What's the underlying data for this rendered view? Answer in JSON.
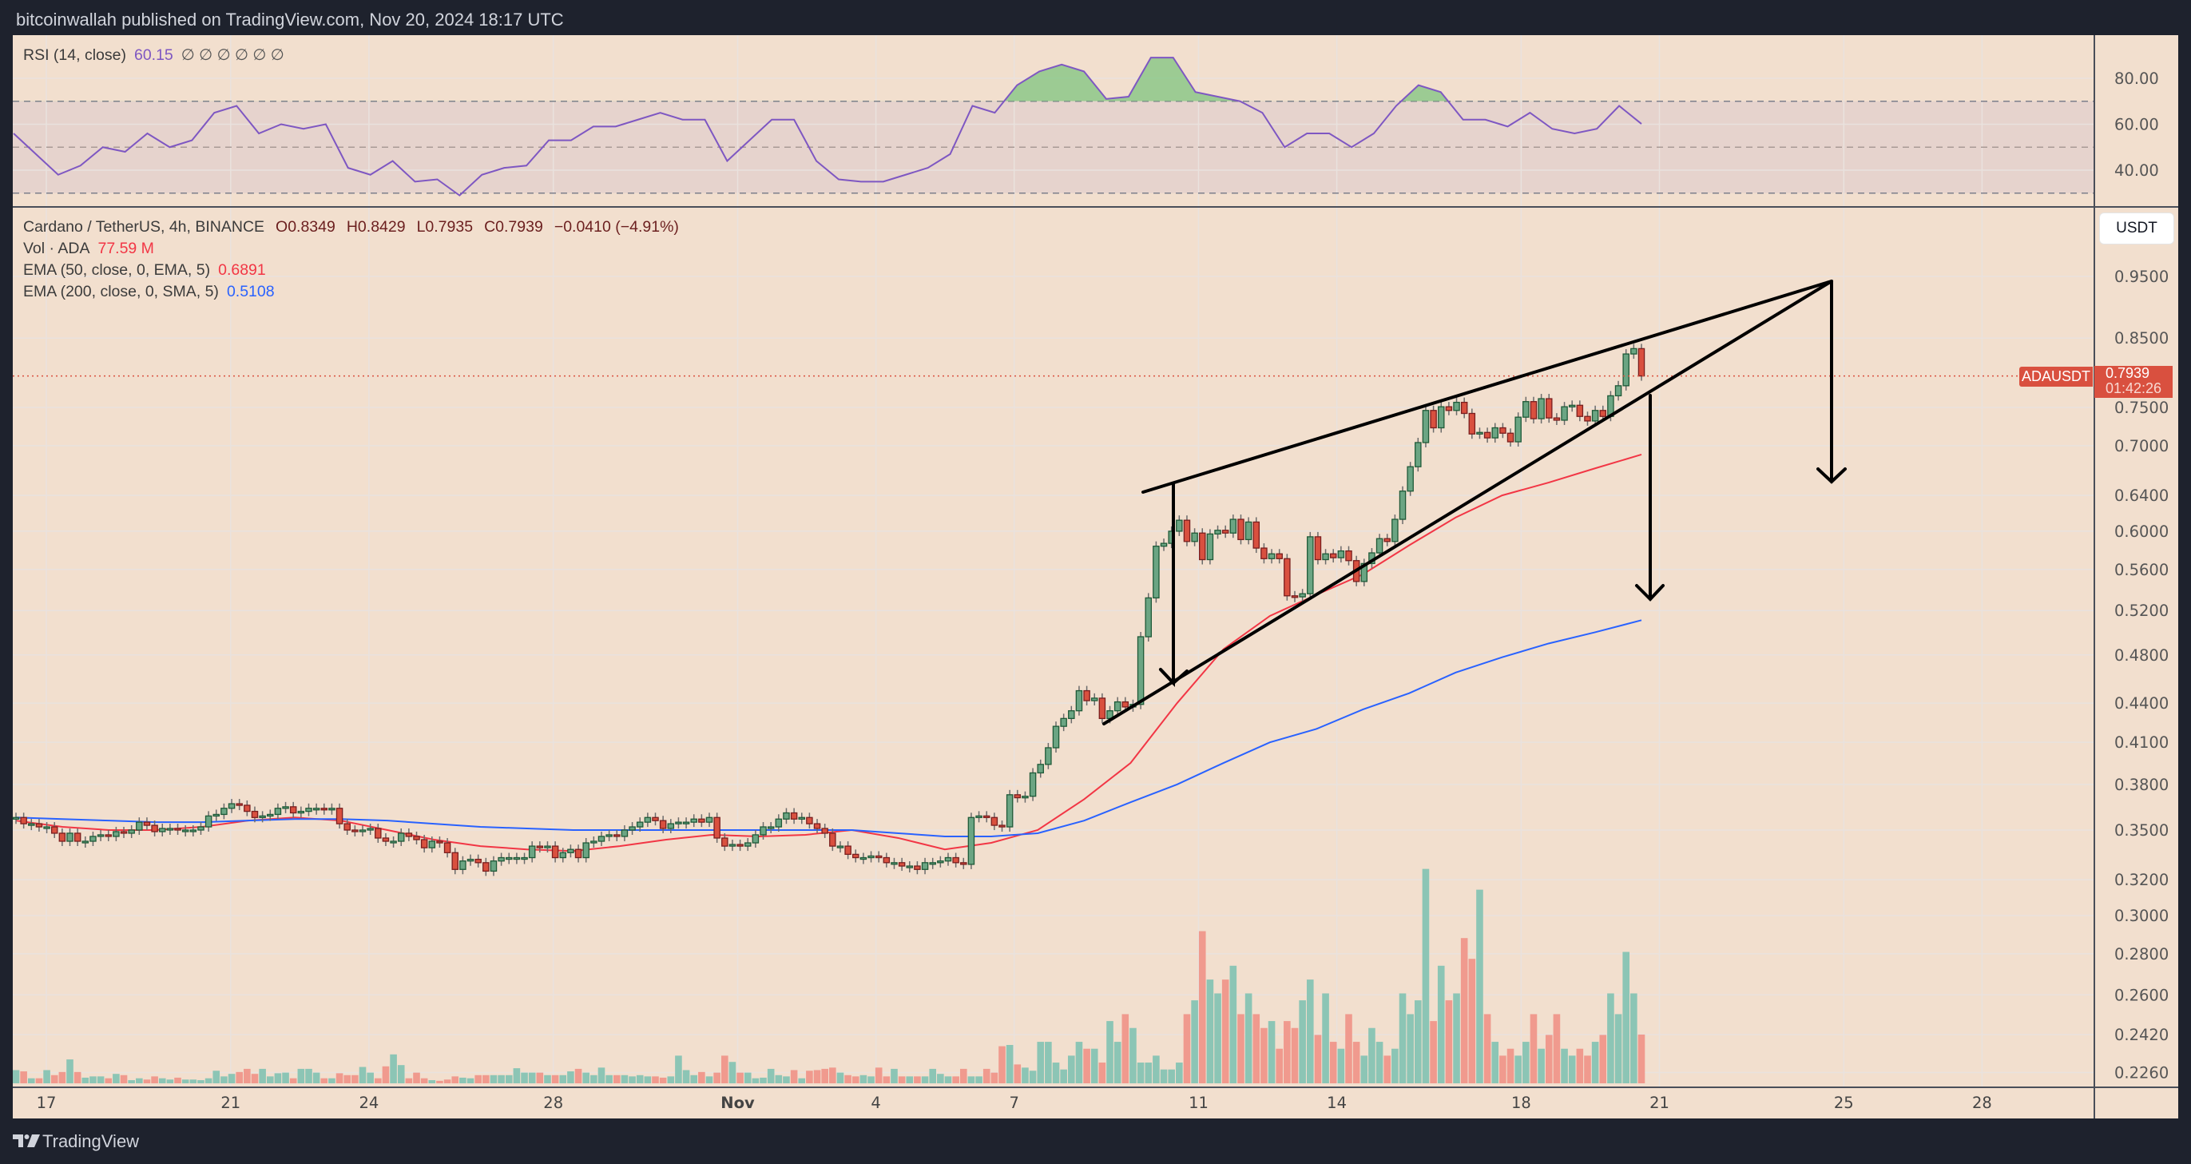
{
  "header": {
    "publisher_line": "bitcoinwallah published on TradingView.com, Nov 20, 2024 18:17 UTC"
  },
  "rsi_legend": {
    "label": "RSI (14, close)",
    "value": "60.15",
    "empty_values": "∅ ∅ ∅ ∅ ∅ ∅"
  },
  "legend": {
    "symbol": "Cardano / TetherUS, 4h, BINANCE",
    "open": "O0.8349",
    "high": "H0.8429",
    "low": "L0.7935",
    "close": "C0.7939",
    "change": "−0.0410 (−4.91%)",
    "vol_label": "Vol · ADA",
    "vol_value": "77.59 M",
    "ema50_label": "EMA (50, close, 0, EMA, 5)",
    "ema50_value": "0.6891",
    "ema200_label": "EMA (200, close, 0, SMA, 5)",
    "ema200_value": "0.5108"
  },
  "price_axis": {
    "currency": "USDT",
    "symbol_tag": "ADAUSDT",
    "last_price": "0.7939",
    "countdown": "01:42:26"
  },
  "footer": {
    "brand": "TradingView"
  },
  "colors": {
    "background": "#f2dfce",
    "frame": "#1e222d",
    "up": "#6ba583",
    "down": "#d9503f",
    "volume_up": "#8cc5b5",
    "volume_down": "#f09a8e",
    "ema50": "#f23645",
    "ema200": "#2962ff",
    "rsi": "#7e57c2",
    "rsi_overbought_fill": "#7fc47f",
    "last_price": "#d9503f",
    "drawing": "#000000"
  },
  "chart_data": {
    "type": "candlestick",
    "scale": "log",
    "interval": "4h",
    "closes": [
      0.358,
      0.354,
      0.354,
      0.352,
      0.352,
      0.348,
      0.343,
      0.348,
      0.343,
      0.343,
      0.346,
      0.347,
      0.346,
      0.349,
      0.348,
      0.35,
      0.355,
      0.353,
      0.349,
      0.351,
      0.351,
      0.35,
      0.35,
      0.35,
      0.352,
      0.359,
      0.36,
      0.364,
      0.367,
      0.366,
      0.362,
      0.358,
      0.359,
      0.36,
      0.364,
      0.365,
      0.361,
      0.362,
      0.364,
      0.364,
      0.363,
      0.364,
      0.354,
      0.35,
      0.349,
      0.35,
      0.351,
      0.345,
      0.343,
      0.343,
      0.348,
      0.346,
      0.344,
      0.339,
      0.343,
      0.342,
      0.336,
      0.326,
      0.331,
      0.332,
      0.33,
      0.325,
      0.331,
      0.333,
      0.333,
      0.333,
      0.333,
      0.34,
      0.339,
      0.34,
      0.333,
      0.336,
      0.338,
      0.333,
      0.342,
      0.343,
      0.346,
      0.347,
      0.346,
      0.35,
      0.352,
      0.355,
      0.358,
      0.356,
      0.351,
      0.354,
      0.355,
      0.355,
      0.357,
      0.355,
      0.358,
      0.345,
      0.34,
      0.341,
      0.34,
      0.342,
      0.347,
      0.352,
      0.352,
      0.357,
      0.361,
      0.357,
      0.358,
      0.354,
      0.351,
      0.348,
      0.34,
      0.34,
      0.335,
      0.333,
      0.333,
      0.334,
      0.333,
      0.33,
      0.33,
      0.328,
      0.328,
      0.326,
      0.33,
      0.33,
      0.331,
      0.333,
      0.33,
      0.329,
      0.358,
      0.359,
      0.358,
      0.353,
      0.352,
      0.373,
      0.371,
      0.372,
      0.388,
      0.394,
      0.406,
      0.422,
      0.428,
      0.434,
      0.45,
      0.442,
      0.444,
      0.428,
      0.434,
      0.441,
      0.437,
      0.439,
      0.496,
      0.532,
      0.584,
      0.587,
      0.6,
      0.612,
      0.589,
      0.598,
      0.57,
      0.597,
      0.601,
      0.598,
      0.613,
      0.591,
      0.61,
      0.582,
      0.571,
      0.576,
      0.571,
      0.534,
      0.533,
      0.536,
      0.594,
      0.57,
      0.576,
      0.572,
      0.579,
      0.569,
      0.548,
      0.566,
      0.577,
      0.592,
      0.589,
      0.613,
      0.645,
      0.674,
      0.704,
      0.746,
      0.723,
      0.751,
      0.746,
      0.757,
      0.742,
      0.715,
      0.717,
      0.71,
      0.723,
      0.716,
      0.705,
      0.737,
      0.758,
      0.735,
      0.762,
      0.736,
      0.733,
      0.751,
      0.753,
      0.738,
      0.732,
      0.746,
      0.738,
      0.766,
      0.78,
      0.826,
      0.834,
      0.7939
    ],
    "volumes_m": [
      21,
      19,
      8,
      8,
      21,
      13,
      18,
      38,
      18,
      9,
      11,
      11,
      8,
      15,
      13,
      5,
      8,
      6,
      11,
      8,
      6,
      9,
      6,
      6,
      5,
      8,
      20,
      11,
      15,
      18,
      23,
      15,
      23,
      11,
      16,
      17,
      8,
      23,
      23,
      17,
      8,
      8,
      16,
      13,
      13,
      26,
      17,
      8,
      27,
      46,
      29,
      8,
      17,
      8,
      5,
      4,
      6,
      11,
      9,
      8,
      13,
      13,
      13,
      13,
      13,
      24,
      17,
      17,
      17,
      13,
      13,
      13,
      19,
      23,
      17,
      13,
      25,
      13,
      13,
      13,
      11,
      13,
      11,
      11,
      9,
      11,
      44,
      21,
      13,
      18,
      11,
      17,
      44,
      34,
      17,
      17,
      8,
      9,
      23,
      13,
      11,
      21,
      8,
      20,
      21,
      23,
      25,
      17,
      13,
      11,
      13,
      11,
      25,
      11,
      23,
      11,
      11,
      11,
      11,
      23,
      15,
      11,
      11,
      23,
      11,
      11,
      23,
      17,
      59,
      61,
      30,
      25,
      20,
      66,
      66,
      33,
      22,
      44,
      66,
      55,
      55,
      33,
      99,
      66,
      110,
      88,
      33,
      33,
      44,
      22,
      22,
      33,
      110,
      132,
      242,
      165,
      143,
      165,
      187,
      110,
      143,
      110,
      88,
      99,
      55,
      99,
      88,
      132,
      165,
      77,
      143,
      66,
      55,
      110,
      66,
      44,
      88,
      66,
      44,
      55,
      143,
      110,
      132,
      341,
      99,
      187,
      132,
      143,
      231,
      198,
      308,
      110,
      66,
      44,
      55,
      44,
      66,
      110,
      55,
      77,
      110,
      55,
      44,
      55,
      44,
      66,
      77,
      143,
      110,
      209,
      143,
      77.59
    ],
    "ema50_daily": [
      0.356,
      0.352,
      0.35,
      0.35,
      0.352,
      0.356,
      0.358,
      0.356,
      0.35,
      0.344,
      0.34,
      0.338,
      0.337,
      0.34,
      0.344,
      0.347,
      0.346,
      0.347,
      0.35,
      0.345,
      0.338,
      0.342,
      0.35,
      0.37,
      0.395,
      0.44,
      0.485,
      0.515,
      0.535,
      0.555,
      0.585,
      0.615,
      0.64,
      0.655,
      0.672,
      0.689
    ],
    "ema200_daily": [
      0.358,
      0.357,
      0.356,
      0.355,
      0.355,
      0.356,
      0.357,
      0.357,
      0.356,
      0.354,
      0.352,
      0.351,
      0.35,
      0.35,
      0.35,
      0.35,
      0.35,
      0.35,
      0.35,
      0.348,
      0.346,
      0.346,
      0.348,
      0.356,
      0.368,
      0.38,
      0.395,
      0.41,
      0.42,
      0.435,
      0.448,
      0.465,
      0.478,
      0.49,
      0.5,
      0.511
    ],
    "rsi": [
      56,
      47,
      38,
      42,
      50,
      48,
      56,
      50,
      53,
      65,
      68,
      56,
      60,
      58,
      60,
      41,
      38,
      44,
      35,
      36,
      29,
      38,
      41,
      42,
      53,
      53,
      59,
      59,
      62,
      65,
      62,
      62,
      44,
      53,
      62,
      62,
      44,
      36,
      35,
      35,
      38,
      41,
      47,
      68,
      65,
      77,
      83,
      86,
      83,
      71,
      72,
      89,
      89,
      74,
      72,
      70,
      65,
      50,
      56,
      56,
      50,
      56,
      68,
      77,
      74,
      62,
      62,
      59,
      65,
      58,
      56,
      58,
      68,
      60.15
    ],
    "rsi_levels": [
      70,
      50,
      30
    ],
    "rsi_ticks": [
      {
        "value": 80,
        "label": "80.00"
      },
      {
        "value": 60,
        "label": "60.00"
      },
      {
        "value": 40,
        "label": "40.00"
      }
    ],
    "price_ticks": [
      "0.9500",
      "0.8500",
      "0.7500",
      "0.7000",
      "0.6400",
      "0.6000",
      "0.5600",
      "0.5200",
      "0.4800",
      "0.4400",
      "0.4100",
      "0.3800",
      "0.3500",
      "0.3200",
      "0.3000",
      "0.2800",
      "0.2600",
      "0.2420",
      "0.2260"
    ],
    "time_ticks": [
      {
        "label": "17",
        "date": "2024-10-17"
      },
      {
        "label": "21",
        "date": "2024-10-21"
      },
      {
        "label": "24",
        "date": "2024-10-24"
      },
      {
        "label": "28",
        "date": "2024-10-28"
      },
      {
        "label": "Nov",
        "date": "2024-11-01"
      },
      {
        "label": "4",
        "date": "2024-11-04"
      },
      {
        "label": "7",
        "date": "2024-11-07"
      },
      {
        "label": "11",
        "date": "2024-11-11"
      },
      {
        "label": "14",
        "date": "2024-11-14"
      },
      {
        "label": "18",
        "date": "2024-11-18"
      },
      {
        "label": "21",
        "date": "2024-11-21"
      },
      {
        "label": "25",
        "date": "2024-11-25"
      },
      {
        "label": "28",
        "date": "2024-11-28"
      }
    ]
  }
}
